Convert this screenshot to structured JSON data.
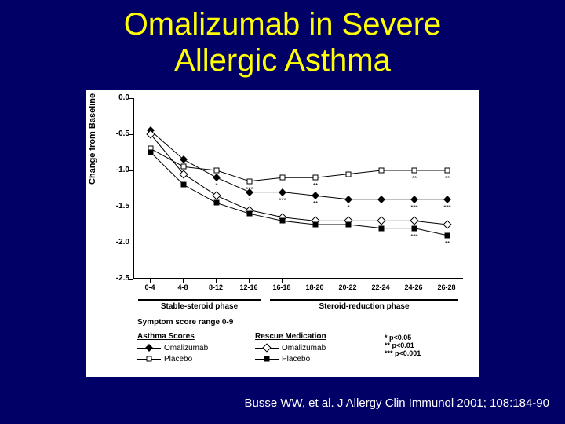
{
  "title_line1": "Omalizumab in Severe",
  "title_line2": "Allergic Asthma",
  "citation": "Busse WW, et al.  J Allergy Clin Immunol 2001; 108:184-90",
  "chart": {
    "type": "line",
    "ylabel": "Change from Baseline",
    "ylim": [
      -2.5,
      0.0
    ],
    "yticks": [
      0.0,
      -0.5,
      -1.0,
      -1.5,
      -2.0,
      -2.5
    ],
    "ytick_labels": [
      "0.0",
      "-0.5",
      "-1.0",
      "-1.5",
      "-2.0",
      "-2.5"
    ],
    "xtick_labels": [
      "0-4",
      "4-8",
      "8-12",
      "12-16",
      "16-18",
      "18-20",
      "20-22",
      "22-24",
      "24-26",
      "26-28"
    ],
    "phase1_label": "Stable-steroid phase",
    "phase2_label": "Steroid-reduction phase",
    "symptom_text": "Symptom score range 0-9",
    "background_color": "#ffffff",
    "axis_color": "#000000",
    "series": {
      "asthma_omalizumab": {
        "label": "Omalizumab",
        "marker": "diamond-filled",
        "values": [
          -0.45,
          -0.85,
          -1.1,
          -1.3,
          -1.3,
          -1.35,
          -1.4,
          -1.4,
          -1.4,
          -1.4
        ]
      },
      "asthma_placebo": {
        "label": "Placebo",
        "marker": "square-open",
        "values": [
          -0.7,
          -0.95,
          -1.0,
          -1.15,
          -1.1,
          -1.1,
          -1.05,
          -1.0,
          -1.0,
          -1.0
        ]
      },
      "rescue_omalizumab": {
        "label": "Omalizumab",
        "marker": "diamond-open",
        "values": [
          -0.5,
          -1.05,
          -1.35,
          -1.55,
          -1.65,
          -1.7,
          -1.7,
          -1.7,
          -1.7,
          -1.75
        ]
      },
      "rescue_placebo": {
        "label": "Placebo",
        "marker": "square-filled",
        "values": [
          -0.75,
          -1.2,
          -1.45,
          -1.6,
          -1.7,
          -1.75,
          -1.75,
          -1.8,
          -1.8,
          -1.9
        ]
      }
    },
    "significance": {
      "rescue": [
        "",
        "",
        "**",
        "***",
        "",
        "**",
        "",
        "",
        "**",
        "**"
      ],
      "asthma": [
        "",
        "",
        "*",
        "*",
        "***",
        "**",
        "*",
        "",
        "***",
        "***"
      ],
      "lower": [
        "",
        "",
        "",
        "",
        "",
        "",
        "",
        "",
        "***",
        "**"
      ]
    },
    "legend": {
      "col1_title": "Asthma Scores",
      "col2_title": "Rescue Medication",
      "sig_levels": [
        "* p<0.05",
        "** p<0.01",
        "*** p<0.001"
      ]
    }
  }
}
